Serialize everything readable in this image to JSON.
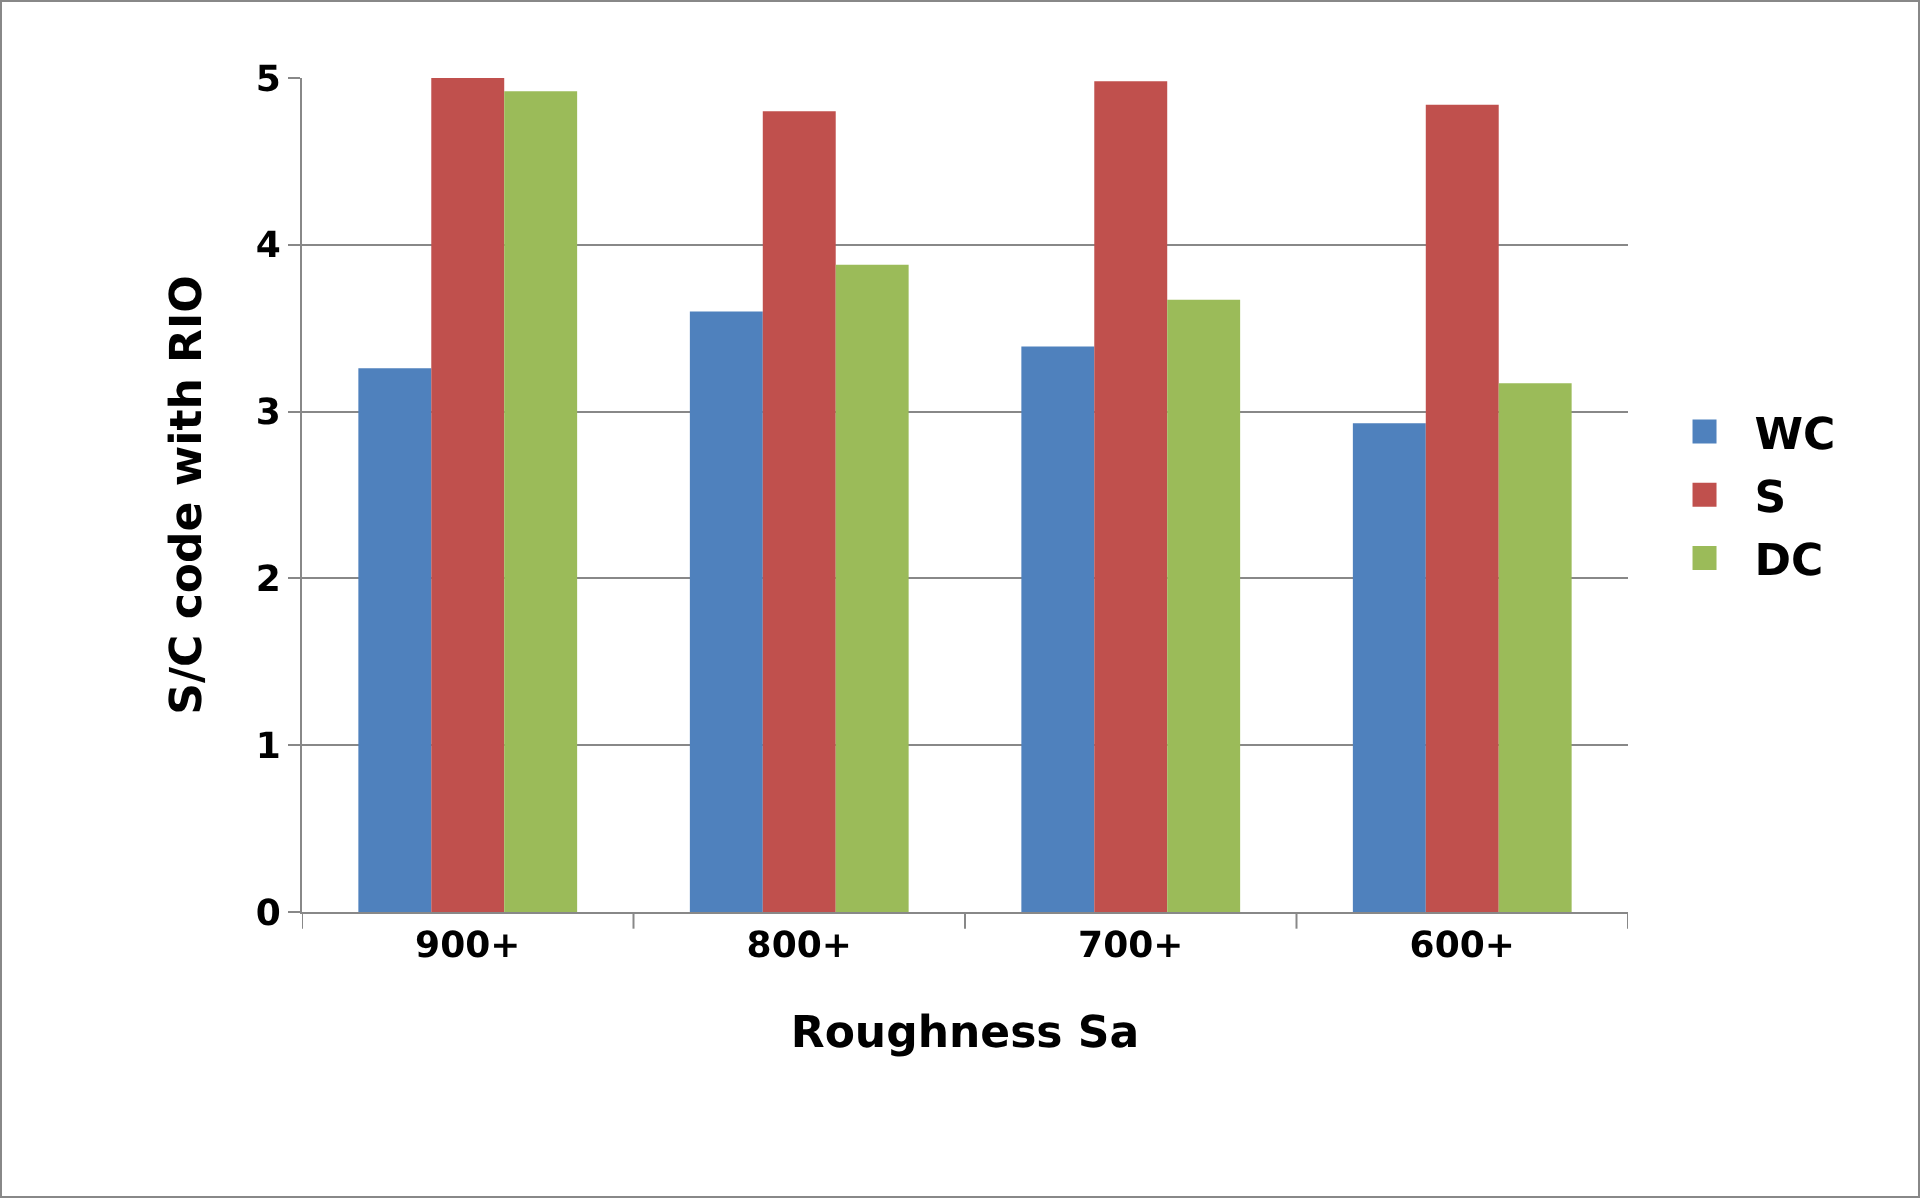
{
  "chart_data": {
    "type": "bar",
    "xlabel": "Roughness Sa",
    "ylabel": "S/C code with RIO",
    "categories": [
      "900+",
      "800+",
      "700+",
      "600+"
    ],
    "series": [
      {
        "name": "WC",
        "color": "#4f81bd",
        "values": [
          3.26,
          3.6,
          3.39,
          2.93
        ]
      },
      {
        "name": "S",
        "color": "#c0504d",
        "values": [
          5.0,
          4.8,
          4.98,
          4.84
        ]
      },
      {
        "name": "DC",
        "color": "#9bbb59",
        "values": [
          4.92,
          3.88,
          3.67,
          3.17
        ]
      }
    ],
    "ylim": [
      0,
      5
    ],
    "yticks": [
      0,
      1,
      2,
      3,
      4,
      5
    ],
    "grid": "y",
    "legend": "right"
  }
}
